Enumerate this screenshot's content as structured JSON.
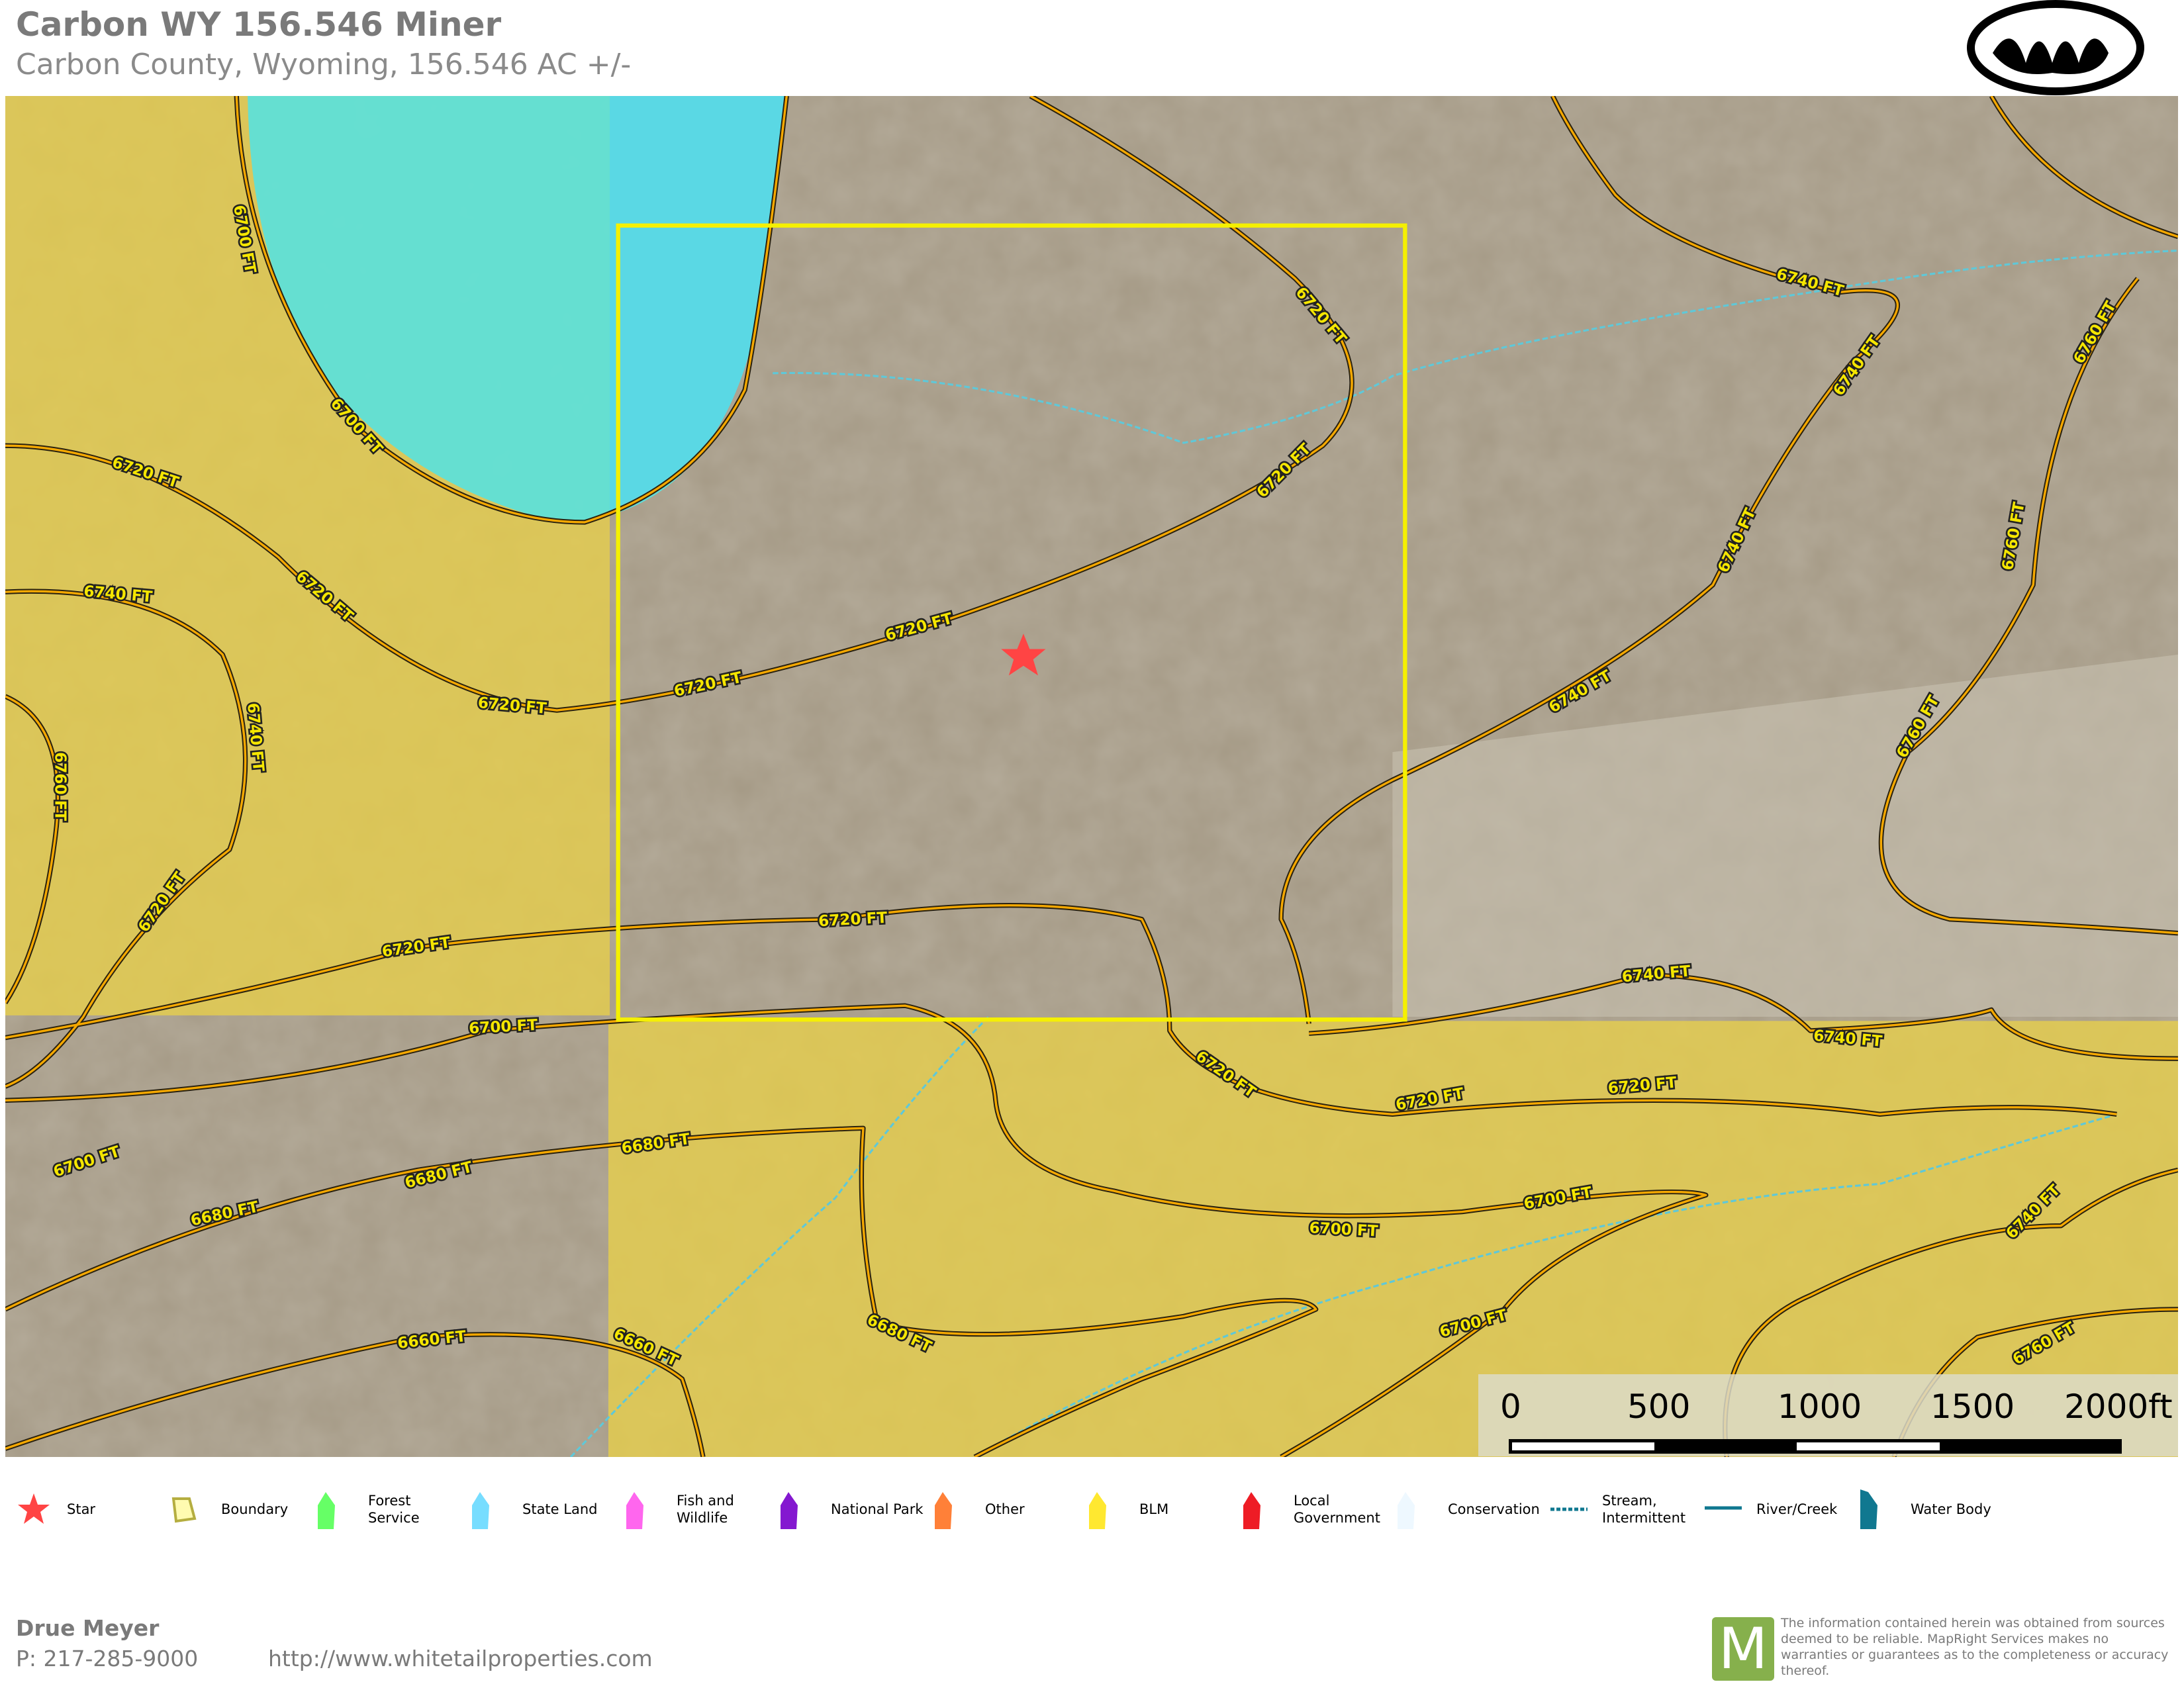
{
  "header": {
    "title": "Carbon WY 156.546 Miner",
    "subtitle": "Carbon County, Wyoming, 156.546 AC +/-"
  },
  "map": {
    "colors": {
      "blm": "#e8d04a",
      "state_land": "#5fd8e0",
      "boundary": "#f5f000",
      "star": "#ff4444",
      "terrain": "#a59a86",
      "contour": "#f5a800",
      "stream": "#5fc8d8"
    },
    "contours": [
      "6700 FT",
      "6700 FT",
      "6720 FT",
      "6720 FT",
      "6720 FT",
      "6720 FT",
      "6720 FT",
      "6720 FT",
      "6740 FT",
      "6740 FT",
      "6760 FT",
      "6720 FT",
      "6720 FT",
      "6720 FT",
      "6720 FT",
      "6700 FT",
      "6700 FT",
      "6680 FT",
      "6680 FT",
      "6680 FT",
      "6660 FT",
      "6660 FT",
      "6740 FT",
      "6740 FT",
      "6740 FT",
      "6740 FT",
      "6760 FT",
      "6760 FT",
      "6760 FT",
      "6740 FT",
      "6740 FT",
      "6720 FT",
      "6720 FT",
      "6720 FT",
      "6700 FT",
      "6700 FT",
      "6680 FT",
      "6700 FT",
      "6740 FT",
      "6760 FT"
    ]
  },
  "scale_bar": {
    "labels": [
      "0",
      "500",
      "1000",
      "1500",
      "2000ft"
    ]
  },
  "legend": [
    {
      "label": "Star",
      "icon": "star-icon",
      "color": "#ff4444"
    },
    {
      "label": "Boundary",
      "icon": "boundary-icon",
      "color": "#f5f000"
    },
    {
      "label": "Forest Service",
      "icon": "forest-service-swatch",
      "color": "#66ff66"
    },
    {
      "label": "State Land",
      "icon": "state-land-swatch",
      "color": "#77ddff"
    },
    {
      "label": "Fish and Wildlife",
      "icon": "fish-wildlife-swatch",
      "color": "#ff66ee"
    },
    {
      "label": "National Park",
      "icon": "national-park-swatch",
      "color": "#8418d0"
    },
    {
      "label": "Other",
      "icon": "other-swatch",
      "color": "#ff8038"
    },
    {
      "label": "BLM",
      "icon": "blm-swatch",
      "color": "#ffe830"
    },
    {
      "label": "Local Government",
      "icon": "local-government-swatch",
      "color": "#ee1c25"
    },
    {
      "label": "Conservation",
      "icon": "conservation-swatch",
      "color": "#eef8ff"
    },
    {
      "label": "Stream, Intermittent",
      "icon": "stream-line-icon",
      "color": "#107890"
    },
    {
      "label": "River/Creek",
      "icon": "river-line-icon",
      "color": "#107890"
    },
    {
      "label": "Water Body",
      "icon": "water-body-swatch",
      "color": "#107890"
    }
  ],
  "footer": {
    "agent": "Drue Meyer",
    "phone": "P: 217-285-9000",
    "url": "http://www.whitetailproperties.com",
    "mapright_logo": "M",
    "disclaimer": "The information contained herein was obtained from sources deemed to be reliable. MapRight Services makes no warranties or guarantees as to the completeness or accuracy thereof."
  }
}
